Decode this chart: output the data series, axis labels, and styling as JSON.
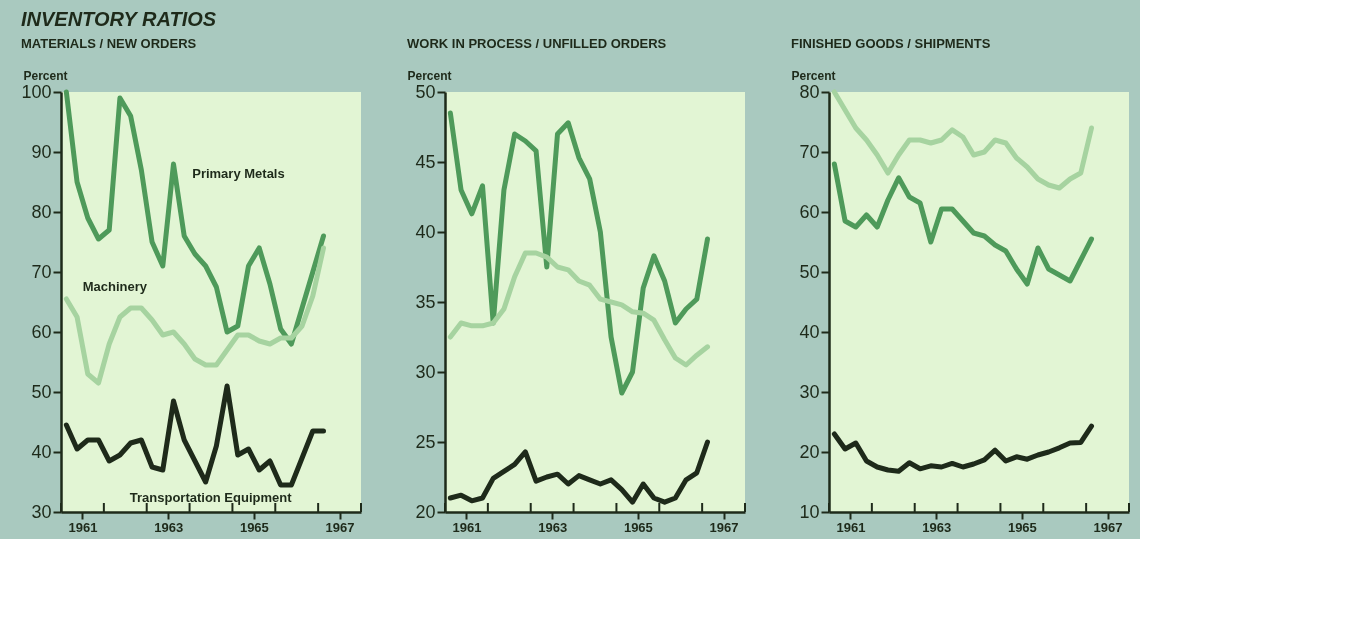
{
  "chart_data": [
    {
      "type": "line",
      "title": "INVENTORY RATIOS",
      "subtitle": "MATERIALS / NEW ORDERS",
      "ylabel": "Percent",
      "x": [
        1961.125,
        1961.375,
        1961.625,
        1961.875,
        1962.125,
        1962.375,
        1962.625,
        1962.875,
        1963.125,
        1963.375,
        1963.625,
        1963.875,
        1964.125,
        1964.375,
        1964.625,
        1964.875,
        1965.125,
        1965.375,
        1965.625,
        1965.875,
        1966.125,
        1966.375,
        1966.625,
        1966.875,
        1967.125
      ],
      "series": [
        {
          "name": "Primary Metals",
          "color": "#4e9a5a",
          "values": [
            100,
            85,
            79,
            75.5,
            77,
            99,
            96,
            87,
            75,
            71,
            88,
            76,
            73,
            71,
            67.5,
            60,
            61,
            71,
            74,
            68,
            60.5,
            58,
            64,
            70,
            76
          ]
        },
        {
          "name": "Machinery",
          "color": "#a6d3a0",
          "values": [
            65.5,
            62.5,
            53,
            51.5,
            58,
            62.5,
            64,
            64,
            62,
            59.5,
            60,
            58,
            55.5,
            54.5,
            54.5,
            57,
            59.5,
            59.5,
            58.5,
            58,
            59,
            59,
            61,
            66,
            74
          ]
        },
        {
          "name": "Transportation Equipment",
          "color": "#1e2a1a",
          "values": [
            44.5,
            40.5,
            42,
            42,
            38.5,
            39.5,
            41.5,
            42,
            37.5,
            37,
            48.5,
            42,
            38.5,
            35,
            41,
            51,
            39.5,
            40.5,
            37,
            38.5,
            34.5,
            34.5,
            39,
            43.5,
            43.5
          ]
        }
      ],
      "xlim": [
        1961,
        1968
      ],
      "xticks": [
        {
          "value": 1961,
          "label": null
        },
        {
          "value": 1961.5,
          "label": "1961"
        },
        {
          "value": 1962,
          "label": null
        },
        {
          "value": 1963,
          "label": null
        },
        {
          "value": 1963.5,
          "label": "1963"
        },
        {
          "value": 1964,
          "label": null
        },
        {
          "value": 1965,
          "label": null
        },
        {
          "value": 1965.5,
          "label": "1965"
        },
        {
          "value": 1966,
          "label": null
        },
        {
          "value": 1967,
          "label": null
        },
        {
          "value": 1967.5,
          "label": "1967"
        },
        {
          "value": 1968,
          "label": null
        }
      ],
      "ylim": [
        30,
        100
      ],
      "yticks": [
        30,
        40,
        50,
        60,
        70,
        80,
        90,
        100
      ],
      "grid": false,
      "legend": false
    },
    {
      "type": "line",
      "subtitle": "WORK IN PROCESS / UNFILLED ORDERS",
      "ylabel": "Percent",
      "x": [
        1961.125,
        1961.375,
        1961.625,
        1961.875,
        1962.125,
        1962.375,
        1962.625,
        1962.875,
        1963.125,
        1963.375,
        1963.625,
        1963.875,
        1964.125,
        1964.375,
        1964.625,
        1964.875,
        1965.125,
        1965.375,
        1965.625,
        1965.875,
        1966.125,
        1966.375,
        1966.625,
        1966.875,
        1967.125
      ],
      "series": [
        {
          "color": "#4e9a5a",
          "values": [
            48.5,
            43,
            41.3,
            43.3,
            33.5,
            43,
            47,
            46.5,
            45.8,
            37.5,
            47,
            47.8,
            45.3,
            43.8,
            40,
            32.5,
            28.5,
            30,
            36,
            38.3,
            36.5,
            33.5,
            34.5,
            35.2,
            39.5
          ]
        },
        {
          "color": "#a6d3a0",
          "values": [
            32.5,
            33.5,
            33.3,
            33.3,
            33.5,
            34.5,
            36.8,
            38.5,
            38.5,
            38.2,
            37.5,
            37.3,
            36.5,
            36.2,
            35.2,
            35,
            34.8,
            34.3,
            34.2,
            33.7,
            32.3,
            31,
            30.5,
            31.2,
            31.8
          ]
        },
        {
          "color": "#1e2a1a",
          "values": [
            21,
            21.2,
            20.8,
            21,
            22.4,
            22.9,
            23.4,
            24.3,
            22.2,
            22.5,
            22.7,
            22,
            22.6,
            22.3,
            22,
            22.3,
            21.6,
            20.7,
            22,
            21,
            20.7,
            21,
            22.3,
            22.8,
            25
          ]
        }
      ],
      "xlim": [
        1961,
        1968
      ],
      "xticks": [
        {
          "value": 1961,
          "label": null
        },
        {
          "value": 1961.5,
          "label": "1961"
        },
        {
          "value": 1962,
          "label": null
        },
        {
          "value": 1963,
          "label": null
        },
        {
          "value": 1963.5,
          "label": "1963"
        },
        {
          "value": 1964,
          "label": null
        },
        {
          "value": 1965,
          "label": null
        },
        {
          "value": 1965.5,
          "label": "1965"
        },
        {
          "value": 1966,
          "label": null
        },
        {
          "value": 1967,
          "label": null
        },
        {
          "value": 1967.5,
          "label": "1967"
        },
        {
          "value": 1968,
          "label": null
        }
      ],
      "ylim": [
        20,
        50
      ],
      "yticks": [
        20,
        25,
        30,
        35,
        40,
        45,
        50
      ],
      "grid": false,
      "legend": false
    },
    {
      "type": "line",
      "subtitle": "FINISHED GOODS / SHIPMENTS",
      "ylabel": "Percent",
      "x": [
        1961.125,
        1961.375,
        1961.625,
        1961.875,
        1962.125,
        1962.375,
        1962.625,
        1962.875,
        1963.125,
        1963.375,
        1963.625,
        1963.875,
        1964.125,
        1964.375,
        1964.625,
        1964.875,
        1965.125,
        1965.375,
        1965.625,
        1965.875,
        1966.125,
        1966.375,
        1966.625,
        1966.875,
        1967.125
      ],
      "series": [
        {
          "color": "#4e9a5a",
          "values": [
            68,
            58.5,
            57.5,
            59.5,
            57.5,
            62,
            65.7,
            62.5,
            61.5,
            55,
            60.5,
            60.5,
            58.5,
            56.5,
            56,
            54.5,
            53.5,
            50.5,
            48,
            54,
            50.5,
            49.5,
            48.5,
            52,
            55.5
          ]
        },
        {
          "color": "#a6d3a0",
          "values": [
            80,
            77,
            74,
            72,
            69.5,
            66.5,
            69.5,
            72,
            72,
            71.5,
            72,
            73.7,
            72.5,
            69.5,
            70,
            72,
            71.5,
            69,
            67.5,
            65.5,
            64.5,
            64,
            65.5,
            66.5,
            74
          ]
        },
        {
          "color": "#1e2a1a",
          "values": [
            23,
            20.5,
            21.5,
            18.5,
            17.5,
            17,
            16.8,
            18.2,
            17.2,
            17.7,
            17.5,
            18.1,
            17.5,
            18,
            18.7,
            20.3,
            18.5,
            19.2,
            18.8,
            19.5,
            20,
            20.7,
            21.5,
            21.6,
            24.3
          ]
        }
      ],
      "xlim": [
        1961,
        1968
      ],
      "xticks": [
        {
          "value": 1961,
          "label": null
        },
        {
          "value": 1961.5,
          "label": "1961"
        },
        {
          "value": 1962,
          "label": null
        },
        {
          "value": 1963,
          "label": null
        },
        {
          "value": 1963.5,
          "label": "1963"
        },
        {
          "value": 1964,
          "label": null
        },
        {
          "value": 1965,
          "label": null
        },
        {
          "value": 1965.5,
          "label": "1965"
        },
        {
          "value": 1966,
          "label": null
        },
        {
          "value": 1967,
          "label": null
        },
        {
          "value": 1967.5,
          "label": "1967"
        },
        {
          "value": 1968,
          "label": null
        }
      ],
      "ylim": [
        10,
        80
      ],
      "yticks": [
        10,
        20,
        30,
        40,
        50,
        60,
        70,
        80
      ],
      "grid": false,
      "legend": false
    }
  ]
}
